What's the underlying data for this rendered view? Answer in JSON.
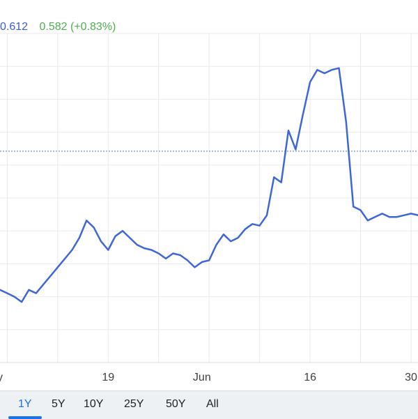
{
  "legend": {
    "current_value": "0.612",
    "compare_value": "0.582",
    "compare_change": "(+0.83%)"
  },
  "colors": {
    "series": "#3e66d8",
    "reference_line": "#5470d8",
    "grid": "#e8eaed",
    "active_tab": "#1a73e8",
    "positive": "#4caf50"
  },
  "tabs": [
    {
      "label": "1Y",
      "active": true
    },
    {
      "label": "5Y",
      "active": false
    },
    {
      "label": "10Y",
      "active": false
    },
    {
      "label": "25Y",
      "active": false
    },
    {
      "label": "50Y",
      "active": false
    },
    {
      "label": "All",
      "active": false
    }
  ],
  "chart_data": {
    "type": "line",
    "grid": true,
    "reference_line": {
      "value": 0.612,
      "style": "dotted"
    },
    "ylim": [
      0.49,
      0.68
    ],
    "x_tick_labels": [
      {
        "date": "2024-05-04",
        "label": "y"
      },
      {
        "date": "2024-05-19",
        "label": "19"
      },
      {
        "date": "2024-06-01",
        "label": "Jun"
      },
      {
        "date": "2024-06-16",
        "label": "16"
      },
      {
        "date": "2024-06-30",
        "label": "30"
      }
    ],
    "series": [
      {
        "x": [
          "2024-05-04",
          "2024-05-05",
          "2024-05-06",
          "2024-05-07",
          "2024-05-08",
          "2024-05-09",
          "2024-05-10",
          "2024-05-11",
          "2024-05-12",
          "2024-05-13",
          "2024-05-14",
          "2024-05-15",
          "2024-05-16",
          "2024-05-17",
          "2024-05-18",
          "2024-05-19",
          "2024-05-20",
          "2024-05-21",
          "2024-05-22",
          "2024-05-23",
          "2024-05-24",
          "2024-05-25",
          "2024-05-26",
          "2024-05-27",
          "2024-05-28",
          "2024-05-29",
          "2024-05-30",
          "2024-05-31",
          "2024-06-01",
          "2024-06-02",
          "2024-06-03",
          "2024-06-04",
          "2024-06-05",
          "2024-06-06",
          "2024-06-07",
          "2024-06-08",
          "2024-06-09",
          "2024-06-10",
          "2024-06-11",
          "2024-06-12",
          "2024-06-13",
          "2024-06-14",
          "2024-06-15",
          "2024-06-16",
          "2024-06-17",
          "2024-06-18",
          "2024-06-19",
          "2024-06-20",
          "2024-06-21",
          "2024-06-22",
          "2024-06-23",
          "2024-06-24",
          "2024-06-25",
          "2024-06-26",
          "2024-06-27",
          "2024-06-28",
          "2024-06-29",
          "2024-06-30",
          "2024-07-01"
        ],
        "values": [
          0.532,
          0.53,
          0.528,
          0.525,
          0.532,
          0.53,
          0.535,
          0.54,
          0.545,
          0.55,
          0.555,
          0.562,
          0.572,
          0.568,
          0.56,
          0.555,
          0.563,
          0.566,
          0.562,
          0.558,
          0.556,
          0.555,
          0.553,
          0.55,
          0.553,
          0.552,
          0.549,
          0.545,
          0.548,
          0.549,
          0.558,
          0.564,
          0.56,
          0.562,
          0.567,
          0.57,
          0.569,
          0.575,
          0.597,
          0.594,
          0.624,
          0.613,
          0.633,
          0.652,
          0.659,
          0.657,
          0.659,
          0.66,
          0.629,
          0.58,
          0.578,
          0.572,
          0.574,
          0.576,
          0.574,
          0.574,
          0.575,
          0.576,
          0.575
        ]
      }
    ]
  }
}
